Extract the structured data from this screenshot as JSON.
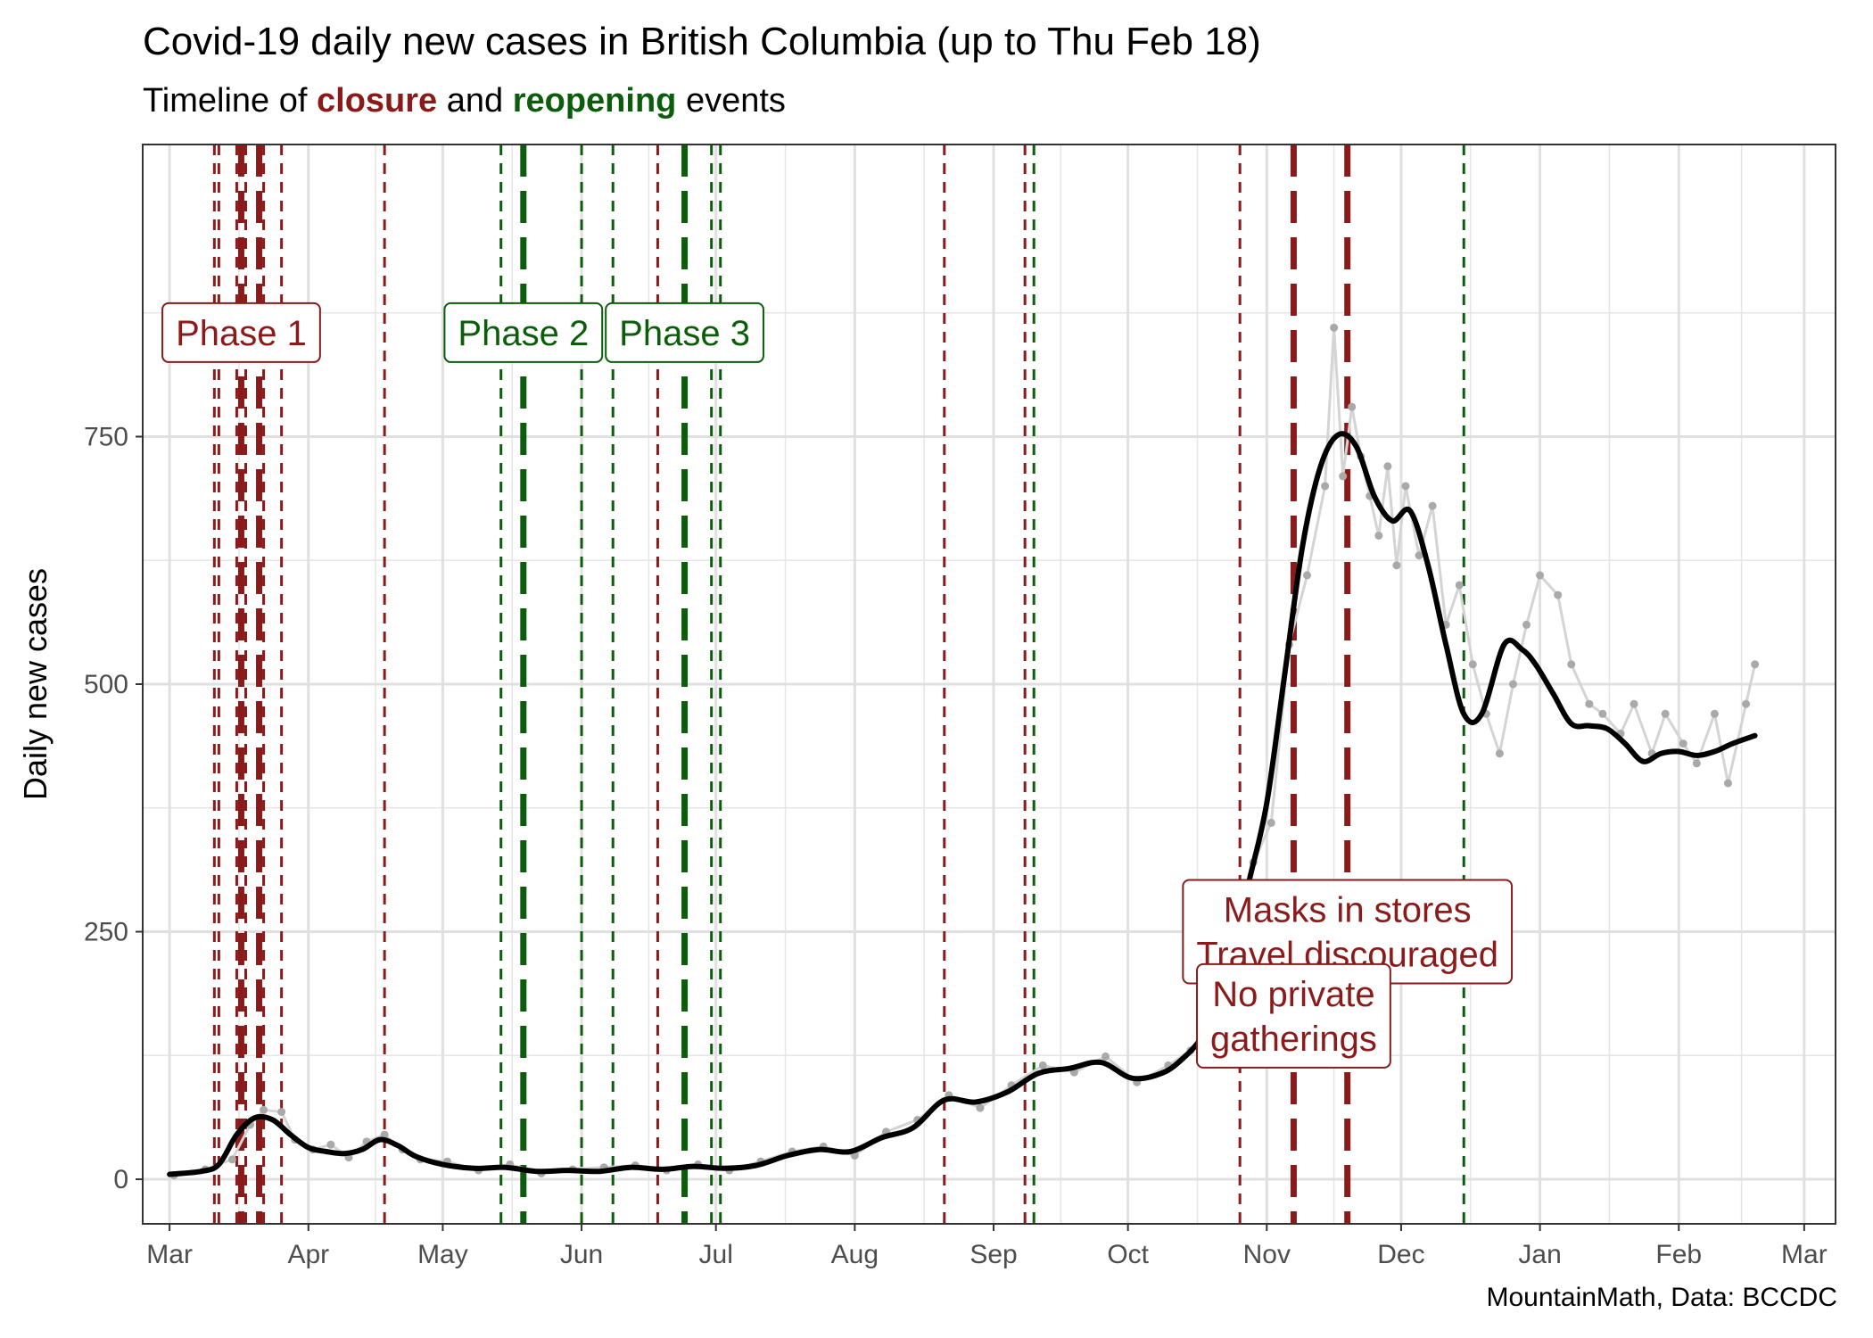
{
  "title": "Covid-19 daily new cases in British Columbia (up to Thu Feb 18)",
  "subtitle": {
    "prefix": "Timeline of ",
    "closure": "closure",
    "middle": " and ",
    "reopening": "reopening",
    "suffix": " events"
  },
  "caption": "MountainMath, Data: BCCDC",
  "colors": {
    "closure": "#8b1a1a",
    "reopening": "#0b5d0b",
    "points": "#a9a9a9",
    "raw_line": "#d4d4d4",
    "trend": "#000000",
    "grid": "#e5e5e5"
  },
  "chart_data": {
    "type": "line",
    "ylabel": "Daily new cases",
    "xlabel": "",
    "ylim": [
      -45,
      1045
    ],
    "yticks": [
      0,
      250,
      500,
      750
    ],
    "xlim": [
      "2020-02-24",
      "2021-03-08"
    ],
    "xticks": [
      {
        "date": "2020-03-01",
        "label": "Mar"
      },
      {
        "date": "2020-04-01",
        "label": "Apr"
      },
      {
        "date": "2020-05-01",
        "label": "May"
      },
      {
        "date": "2020-06-01",
        "label": "Jun"
      },
      {
        "date": "2020-07-01",
        "label": "Jul"
      },
      {
        "date": "2020-08-01",
        "label": "Aug"
      },
      {
        "date": "2020-09-01",
        "label": "Sep"
      },
      {
        "date": "2020-10-01",
        "label": "Oct"
      },
      {
        "date": "2020-11-01",
        "label": "Nov"
      },
      {
        "date": "2020-12-01",
        "label": "Dec"
      },
      {
        "date": "2021-01-01",
        "label": "Jan"
      },
      {
        "date": "2021-02-01",
        "label": "Feb"
      },
      {
        "date": "2021-03-01",
        "label": "Mar"
      }
    ],
    "grid": true,
    "trend": {
      "x": [
        "2020-03-01",
        "2020-03-08",
        "2020-03-12",
        "2020-03-16",
        "2020-03-20",
        "2020-03-24",
        "2020-03-28",
        "2020-04-01",
        "2020-04-05",
        "2020-04-09",
        "2020-04-13",
        "2020-04-17",
        "2020-04-21",
        "2020-04-25",
        "2020-05-01",
        "2020-05-08",
        "2020-05-15",
        "2020-05-22",
        "2020-05-29",
        "2020-06-05",
        "2020-06-12",
        "2020-06-19",
        "2020-06-26",
        "2020-07-03",
        "2020-07-10",
        "2020-07-17",
        "2020-07-24",
        "2020-07-31",
        "2020-08-07",
        "2020-08-14",
        "2020-08-21",
        "2020-08-28",
        "2020-09-04",
        "2020-09-11",
        "2020-09-18",
        "2020-09-25",
        "2020-10-02",
        "2020-10-09",
        "2020-10-14",
        "2020-10-17",
        "2020-10-20",
        "2020-10-24",
        "2020-10-28",
        "2020-11-01",
        "2020-11-05",
        "2020-11-09",
        "2020-11-13",
        "2020-11-17",
        "2020-11-21",
        "2020-11-25",
        "2020-11-29",
        "2020-12-03",
        "2020-12-07",
        "2020-12-11",
        "2020-12-15",
        "2020-12-19",
        "2020-12-24",
        "2020-12-28",
        "2020-12-31",
        "2021-01-04",
        "2021-01-08",
        "2021-01-12",
        "2021-01-16",
        "2021-01-20",
        "2021-01-24",
        "2021-01-28",
        "2021-02-01",
        "2021-02-05",
        "2021-02-09",
        "2021-02-13",
        "2021-02-18"
      ],
      "y": [
        5,
        8,
        15,
        45,
        62,
        60,
        45,
        32,
        28,
        26,
        30,
        40,
        34,
        23,
        15,
        11,
        12,
        8,
        9,
        8,
        12,
        10,
        13,
        11,
        14,
        24,
        30,
        28,
        42,
        52,
        80,
        78,
        88,
        107,
        112,
        118,
        102,
        108,
        125,
        140,
        160,
        220,
        300,
        380,
        510,
        640,
        720,
        752,
        740,
        690,
        665,
        675,
        620,
        540,
        470,
        470,
        540,
        535,
        520,
        490,
        460,
        458,
        455,
        440,
        422,
        430,
        432,
        428,
        432,
        440,
        448
      ]
    },
    "raw": {
      "x": [
        "2020-03-02",
        "2020-03-09",
        "2020-03-15",
        "2020-03-19",
        "2020-03-22",
        "2020-03-26",
        "2020-03-29",
        "2020-04-02",
        "2020-04-06",
        "2020-04-10",
        "2020-04-14",
        "2020-04-18",
        "2020-04-22",
        "2020-04-26",
        "2020-05-02",
        "2020-05-09",
        "2020-05-16",
        "2020-05-23",
        "2020-05-30",
        "2020-06-06",
        "2020-06-13",
        "2020-06-20",
        "2020-06-27",
        "2020-07-04",
        "2020-07-11",
        "2020-07-18",
        "2020-07-25",
        "2020-08-01",
        "2020-08-08",
        "2020-08-15",
        "2020-08-22",
        "2020-08-29",
        "2020-09-05",
        "2020-09-12",
        "2020-09-19",
        "2020-09-26",
        "2020-10-03",
        "2020-10-10",
        "2020-10-15",
        "2020-10-18",
        "2020-10-21",
        "2020-10-25",
        "2020-10-29",
        "2020-11-02",
        "2020-11-06",
        "2020-11-10",
        "2020-11-14",
        "2020-11-16",
        "2020-11-18",
        "2020-11-20",
        "2020-11-22",
        "2020-11-24",
        "2020-11-26",
        "2020-11-28",
        "2020-11-30",
        "2020-12-02",
        "2020-12-05",
        "2020-12-08",
        "2020-12-11",
        "2020-12-14",
        "2020-12-17",
        "2020-12-20",
        "2020-12-23",
        "2020-12-26",
        "2020-12-29",
        "2021-01-01",
        "2021-01-05",
        "2021-01-08",
        "2021-01-12",
        "2021-01-15",
        "2021-01-19",
        "2021-01-22",
        "2021-01-26",
        "2021-01-29",
        "2021-02-02",
        "2021-02-05",
        "2021-02-09",
        "2021-02-12",
        "2021-02-16",
        "2021-02-18"
      ],
      "y": [
        4,
        10,
        20,
        55,
        70,
        68,
        40,
        30,
        35,
        22,
        38,
        45,
        30,
        20,
        18,
        9,
        15,
        6,
        10,
        12,
        14,
        9,
        15,
        9,
        18,
        28,
        33,
        24,
        48,
        60,
        85,
        72,
        95,
        115,
        108,
        124,
        98,
        115,
        130,
        150,
        170,
        210,
        320,
        360,
        540,
        610,
        700,
        860,
        710,
        780,
        730,
        690,
        650,
        720,
        620,
        700,
        630,
        680,
        560,
        600,
        520,
        470,
        430,
        500,
        560,
        610,
        590,
        520,
        480,
        470,
        450,
        480,
        430,
        470,
        440,
        420,
        470,
        400,
        480,
        520
      ]
    },
    "events": [
      {
        "date": "2020-03-11",
        "type": "closure",
        "weight": "minor"
      },
      {
        "date": "2020-03-12",
        "type": "closure",
        "weight": "minor"
      },
      {
        "date": "2020-03-16",
        "type": "closure",
        "weight": "minor"
      },
      {
        "date": "2020-03-17",
        "type": "closure",
        "weight": "major"
      },
      {
        "date": "2020-03-18",
        "type": "closure",
        "weight": "minor"
      },
      {
        "date": "2020-03-21",
        "type": "closure",
        "weight": "major"
      },
      {
        "date": "2020-03-22",
        "type": "closure",
        "weight": "minor"
      },
      {
        "date": "2020-03-26",
        "type": "closure",
        "weight": "minor"
      },
      {
        "date": "2020-04-18",
        "type": "closure",
        "weight": "minor"
      },
      {
        "date": "2020-05-14",
        "type": "reopening",
        "weight": "minor"
      },
      {
        "date": "2020-05-19",
        "type": "reopening",
        "weight": "major"
      },
      {
        "date": "2020-06-01",
        "type": "reopening",
        "weight": "minor"
      },
      {
        "date": "2020-06-08",
        "type": "reopening",
        "weight": "minor"
      },
      {
        "date": "2020-06-18",
        "type": "closure",
        "weight": "minor"
      },
      {
        "date": "2020-06-24",
        "type": "reopening",
        "weight": "major"
      },
      {
        "date": "2020-06-30",
        "type": "reopening",
        "weight": "minor"
      },
      {
        "date": "2020-07-02",
        "type": "reopening",
        "weight": "minor"
      },
      {
        "date": "2020-08-21",
        "type": "closure",
        "weight": "minor"
      },
      {
        "date": "2020-09-08",
        "type": "closure",
        "weight": "minor"
      },
      {
        "date": "2020-09-10",
        "type": "reopening",
        "weight": "minor"
      },
      {
        "date": "2020-10-26",
        "type": "closure",
        "weight": "minor"
      },
      {
        "date": "2020-11-07",
        "type": "closure",
        "weight": "major"
      },
      {
        "date": "2020-11-19",
        "type": "closure",
        "weight": "major"
      },
      {
        "date": "2020-12-15",
        "type": "reopening",
        "weight": "minor"
      }
    ],
    "annotations": [
      {
        "date": "2020-03-17",
        "y": 855,
        "type": "closure",
        "lines": [
          "Phase 1"
        ]
      },
      {
        "date": "2020-05-19",
        "y": 855,
        "type": "reopening",
        "lines": [
          "Phase 2"
        ]
      },
      {
        "date": "2020-06-24",
        "y": 855,
        "type": "reopening",
        "lines": [
          "Phase 3"
        ]
      },
      {
        "date": "2020-11-19",
        "y": 250,
        "type": "closure",
        "lines": [
          "Masks in stores",
          "Travel discouraged"
        ]
      },
      {
        "date": "2020-11-07",
        "y": 165,
        "type": "closure",
        "lines": [
          "No private",
          "gatherings"
        ]
      }
    ]
  }
}
